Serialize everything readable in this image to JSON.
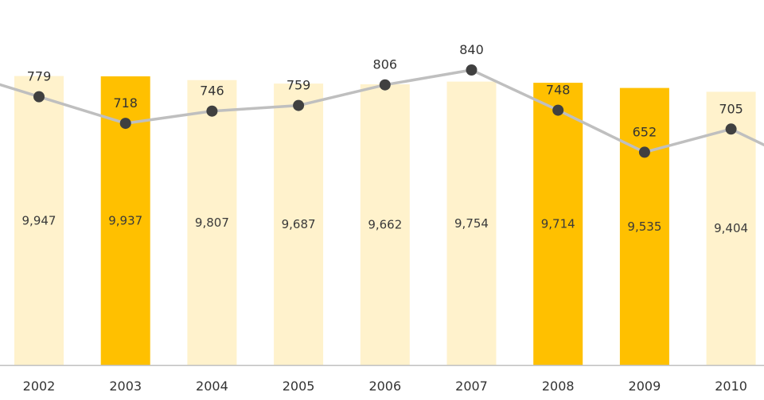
{
  "chart_data": {
    "type": "bar",
    "categories": [
      "2002",
      "2003",
      "2004",
      "2005",
      "2006",
      "2007",
      "2008",
      "2009",
      "2010"
    ],
    "series": [
      {
        "kind": "bar",
        "values": [
          9947,
          9937,
          9807,
          9687,
          9662,
          9754,
          9714,
          9535,
          9404
        ],
        "value_labels": [
          "9,947",
          "9,937",
          "9,807",
          "9,687",
          "9,662",
          "9,754",
          "9,714",
          "9,535",
          "9,404"
        ],
        "highlighted": [
          false,
          true,
          false,
          false,
          false,
          false,
          true,
          true,
          false
        ]
      },
      {
        "kind": "line",
        "values": [
          779,
          718,
          746,
          759,
          806,
          840,
          748,
          652,
          705
        ],
        "value_labels": [
          "779",
          "718",
          "746",
          "759",
          "806",
          "840",
          "748",
          "652",
          "705"
        ],
        "offscreen_start": 840,
        "offscreen_end": 610
      }
    ],
    "xlabel": "",
    "ylabel": "",
    "bar_ylim": [
      0,
      10100
    ],
    "line_ylim": [
      200,
      1000
    ],
    "grid": false,
    "legend": "none",
    "colors": {
      "bar_default": "#FFF2CC",
      "bar_highlight": "#FFC000",
      "line": "#BFBFBF",
      "marker": "#404040",
      "axis": "#BFBFBF",
      "text": "#333333"
    }
  }
}
